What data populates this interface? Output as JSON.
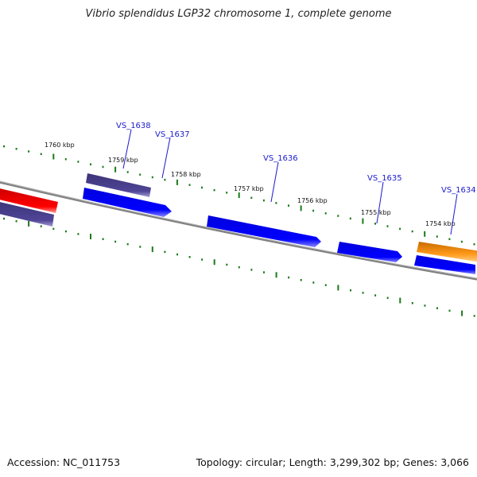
{
  "title": "Vibrio splendidus LGP32 chromosome 1, complete genome",
  "footer": {
    "accession": "Accession: NC_011753",
    "summary": "Topology: circular; Length: 3,299,302 bp; Genes: 3,066"
  },
  "kbp_ticks": [
    "1760 kbp",
    "1759 kbp",
    "1758 kbp",
    "1757 kbp",
    "1756 kbp",
    "1755 kbp",
    "1754 kbp"
  ],
  "genes": [
    "VS_1638",
    "VS_1637",
    "VS_1636",
    "VS_1635",
    "VS_1634"
  ],
  "colors": {
    "backbone": "#888888",
    "forward_gene": "#0000ee",
    "reverse_gene": "#4b4290",
    "rna_gene": "#ee0000",
    "other_gene": "#ff9a1a",
    "ticks": "#1a7a1a",
    "gene_label": "#1a1acc"
  }
}
